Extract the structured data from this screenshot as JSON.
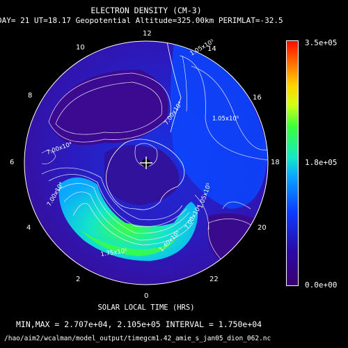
{
  "header": {
    "title": "ELECTRON DENSITY (CM-3)",
    "subtitle": "DAY= 21 UT=18.17 Geopotential Altitude=325.00km PERIMLAT=-32.5"
  },
  "map": {
    "center_marker": "+",
    "local_time_labels": {
      "lt12": "12",
      "lt14": "14",
      "lt16": "16",
      "lt18": "18",
      "lt20": "20",
      "lt22": "22",
      "lt0": "0",
      "lt2": "2",
      "lt4": "4",
      "lt6": "6",
      "lt8": "8",
      "lt10": "10"
    },
    "contour_labels": {
      "l1": "1.05x10⁵",
      "l2": "7.00x10⁴",
      "l3": "1.75x10⁵",
      "l4": "1.40x10⁵",
      "l5": "7.00x10⁴",
      "l6": "1.05x10⁵",
      "l7": "7.00x10⁴",
      "l8": "1.05x10⁵",
      "l9": "7.00x10⁴"
    },
    "colors": {
      "background": "#000000",
      "low": "#3b0070",
      "mid": "#0a3cff",
      "high_tongue": "#14e6c8",
      "peak": "#3cff3c"
    }
  },
  "colorbar": {
    "max_label": "3.5e+05",
    "mid_label": "1.8e+05",
    "min_label": "0.0e+00"
  },
  "footer": {
    "xlabel": "SOLAR LOCAL TIME (HRS)",
    "minmax": "MIN,MAX =  2.707e+04, 2.105e+05 INTERVAL =  1.750e+04",
    "filepath": "/hao/aim2/wcalman/model_output/timegcm1.42_amie_s_jan05_dion_062.nc"
  }
}
